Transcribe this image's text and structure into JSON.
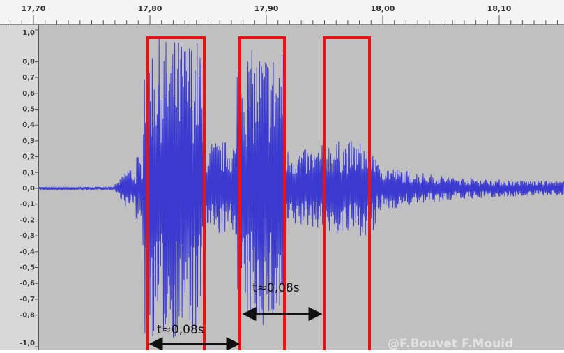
{
  "ruler": {
    "labels": [
      "17,70",
      "17,80",
      "17,90",
      "18,00",
      "18,10"
    ]
  },
  "amplitude_labels": [
    "1,0",
    "0,8",
    "0,7",
    "0,6",
    "0,5",
    "0,4",
    "0,3",
    "0,2",
    "0,1",
    "0,0",
    "-0,1",
    "-0,2",
    "-0,3",
    "-0,4",
    "-0,5",
    "-0,6",
    "-0,7",
    "-0,8",
    "-1,0"
  ],
  "annotations": [
    "t≈0,08s",
    "t≈0,08s"
  ],
  "watermark": "@F.Bouvet  F.Mouid"
}
